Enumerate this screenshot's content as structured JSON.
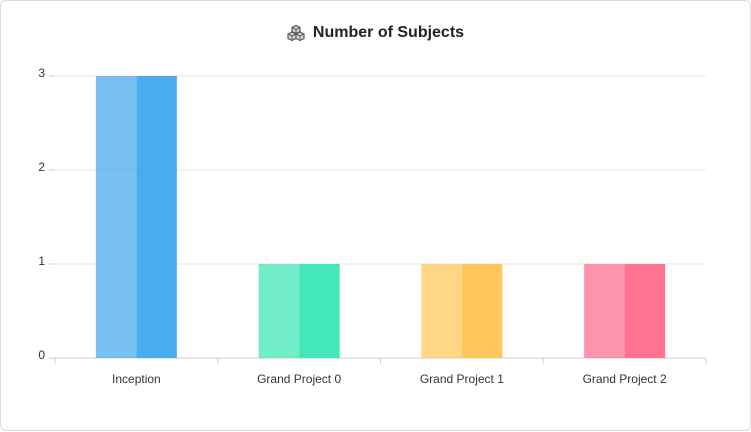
{
  "chart_data": {
    "type": "bar",
    "title": "Number of Subjects",
    "icon": "cubes-icon",
    "categories": [
      "Inception",
      "Grand Project 0",
      "Grand Project 1",
      "Grand Project 2"
    ],
    "values": [
      3,
      1,
      1,
      1
    ],
    "colors": [
      "#36a2eb",
      "#2ee6b0",
      "#ffc14d",
      "#ff6384"
    ],
    "ylim": [
      0,
      3
    ],
    "yticks": [
      0,
      1,
      2,
      3
    ],
    "grid": true,
    "legend": "none",
    "xlabel": "",
    "ylabel": ""
  }
}
